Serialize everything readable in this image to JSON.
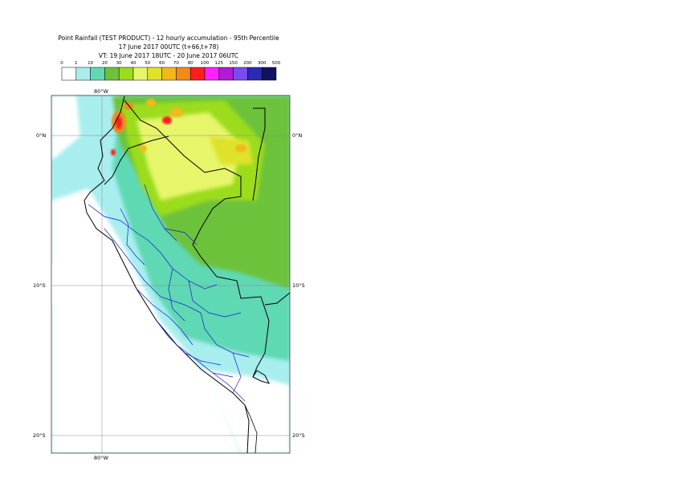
{
  "title": {
    "line1": "Point Rainfall (TEST PRODUCT) - 12 hourly accumulation - 95th Percentile",
    "line2": "17 June 2017 00UTC (t+66,t+78)",
    "line3": "VT: 19 June 2017 18UTC - 20 June 2017 06UTC"
  },
  "legend": {
    "thresholds": [
      "0",
      "1",
      "10",
      "20",
      "30",
      "40",
      "50",
      "60",
      "70",
      "80",
      "100",
      "125",
      "150",
      "200",
      "300",
      "500"
    ],
    "colors": [
      "#ffffff",
      "#a8eeee",
      "#5fd8b4",
      "#6cc23a",
      "#9bdc1c",
      "#e6f56a",
      "#dfe22a",
      "#f2b81a",
      "#f28a1a",
      "#ff1f1f",
      "#ff22ff",
      "#b21ad6",
      "#7a4cf0",
      "#2a2ab4",
      "#121262"
    ]
  },
  "axes": {
    "lon_label_top": "80°W",
    "lon_label_bottom": "80°W",
    "lat_labels": [
      "0°N",
      "10°S",
      "20°S"
    ]
  }
}
